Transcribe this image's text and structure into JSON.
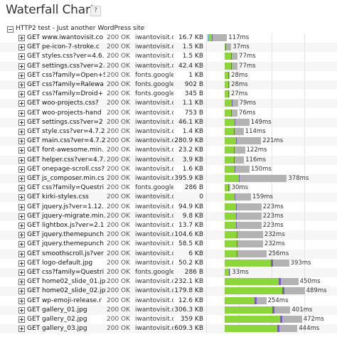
{
  "header": {
    "title": "Waterfall Chart",
    "help_label": "?"
  },
  "group": {
    "label": "HTTP2 test - Just another WordPress site"
  },
  "rows": [
    {
      "request": "GET www.iwantovisit.co",
      "status": "200 OK",
      "host": "iwantovisit.co",
      "size": "16.7 KB",
      "time": "117ms",
      "start_ms": 0,
      "green_ms": 20,
      "blue_ms": 4,
      "purple_ms": 2,
      "gray_ms": 90
    },
    {
      "request": "GET pe-icon-7-stroke.c",
      "status": "200 OK",
      "host": "iwantovisit.co",
      "size": "1.5 KB",
      "time": "37ms",
      "start_ms": 105,
      "green_ms": 5,
      "blue_ms": 0,
      "purple_ms": 2,
      "gray_ms": 30
    },
    {
      "request": "GET styles.css?ver=4.6.",
      "status": "200 OK",
      "host": "iwantovisit.co",
      "size": "1.5 KB",
      "time": "77ms",
      "start_ms": 105,
      "green_ms": 40,
      "blue_ms": 0,
      "purple_ms": 3,
      "gray_ms": 34
    },
    {
      "request": "GET settings.css?ver=2.",
      "status": "200 OK",
      "host": "iwantovisit.co",
      "size": "42.4 KB",
      "time": "77ms",
      "start_ms": 105,
      "green_ms": 40,
      "blue_ms": 0,
      "purple_ms": 3,
      "gray_ms": 34
    },
    {
      "request": "GET css?family=Open+S",
      "status": "200 OK",
      "host": "fonts.google.",
      "size": "1 KB",
      "time": "28ms",
      "start_ms": 105,
      "green_ms": 20,
      "blue_ms": 0,
      "purple_ms": 2,
      "gray_ms": 6
    },
    {
      "request": "GET css?family=Ralewa",
      "status": "200 OK",
      "host": "fonts.google.",
      "size": "902 B",
      "time": "28ms",
      "start_ms": 105,
      "green_ms": 20,
      "blue_ms": 0,
      "purple_ms": 2,
      "gray_ms": 6
    },
    {
      "request": "GET css?family=Droid+",
      "status": "200 OK",
      "host": "fonts.google.",
      "size": "345 B",
      "time": "27ms",
      "start_ms": 105,
      "green_ms": 20,
      "blue_ms": 0,
      "purple_ms": 2,
      "gray_ms": 5
    },
    {
      "request": "GET woo-projects.css?",
      "status": "200 OK",
      "host": "iwantovisit.co",
      "size": "1.1 KB",
      "time": "79ms",
      "start_ms": 105,
      "green_ms": 42,
      "blue_ms": 0,
      "purple_ms": 3,
      "gray_ms": 34
    },
    {
      "request": "GET woo-projects-hand",
      "status": "200 OK",
      "host": "iwantovisit.co",
      "size": "753 B",
      "time": "76ms",
      "start_ms": 105,
      "green_ms": 40,
      "blue_ms": 0,
      "purple_ms": 3,
      "gray_ms": 33
    },
    {
      "request": "GET settings.css?ver=2",
      "status": "200 OK",
      "host": "iwantovisit.co",
      "size": "46.1 KB",
      "time": "149ms",
      "start_ms": 105,
      "green_ms": 60,
      "blue_ms": 0,
      "purple_ms": 3,
      "gray_ms": 86
    },
    {
      "request": "GET style.css?ver=4.7.2",
      "status": "200 OK",
      "host": "iwantovisit.co",
      "size": "1.4 KB",
      "time": "114ms",
      "start_ms": 105,
      "green_ms": 55,
      "blue_ms": 0,
      "purple_ms": 3,
      "gray_ms": 56
    },
    {
      "request": "GET main.css?ver=4.7.2",
      "status": "200 OK",
      "host": "iwantovisit.co",
      "size": "280.9 KB",
      "time": "221ms",
      "start_ms": 105,
      "green_ms": 70,
      "blue_ms": 0,
      "purple_ms": 3,
      "gray_ms": 148
    },
    {
      "request": "GET font-awesome.min.",
      "status": "200 OK",
      "host": "iwantovisit.co",
      "size": "23.2 KB",
      "time": "122ms",
      "start_ms": 105,
      "green_ms": 55,
      "blue_ms": 0,
      "purple_ms": 3,
      "gray_ms": 64
    },
    {
      "request": "GET helper.css?ver=4.7.",
      "status": "200 OK",
      "host": "iwantovisit.co",
      "size": "3.9 KB",
      "time": "116ms",
      "start_ms": 105,
      "green_ms": 55,
      "blue_ms": 0,
      "purple_ms": 3,
      "gray_ms": 58
    },
    {
      "request": "GET onepage-scroll.css?",
      "status": "200 OK",
      "host": "iwantovisit.co",
      "size": "1.6 KB",
      "time": "150ms",
      "start_ms": 105,
      "green_ms": 60,
      "blue_ms": 0,
      "purple_ms": 3,
      "gray_ms": 87
    },
    {
      "request": "GET js_composer.min.cs",
      "status": "200 OK",
      "host": "iwantovisit.co",
      "size": "395.9 KB",
      "time": "378ms",
      "start_ms": 105,
      "green_ms": 85,
      "blue_ms": 0,
      "purple_ms": 3,
      "gray_ms": 290
    },
    {
      "request": "GET css?family=Questri",
      "status": "200 OK",
      "host": "fonts.google.",
      "size": "286 B",
      "time": "30ms",
      "start_ms": 105,
      "green_ms": 22,
      "blue_ms": 0,
      "purple_ms": 2,
      "gray_ms": 6
    },
    {
      "request": "GET kirki-styles.css",
      "status": "200 OK",
      "host": "iwantovisit.co",
      "size": "0",
      "time": "159ms",
      "start_ms": 105,
      "green_ms": 62,
      "blue_ms": 0,
      "purple_ms": 3,
      "gray_ms": 94
    },
    {
      "request": "GET jquery.js?ver=1.12.",
      "status": "200 OK",
      "host": "iwantovisit.co",
      "size": "94.9 KB",
      "time": "223ms",
      "start_ms": 105,
      "green_ms": 70,
      "blue_ms": 0,
      "purple_ms": 3,
      "gray_ms": 150
    },
    {
      "request": "GET jquery-migrate.min.",
      "status": "200 OK",
      "host": "iwantovisit.co",
      "size": "9.8 KB",
      "time": "223ms",
      "start_ms": 105,
      "green_ms": 70,
      "blue_ms": 0,
      "purple_ms": 3,
      "gray_ms": 150
    },
    {
      "request": "GET lightbox.js?ver=2.1",
      "status": "200 OK",
      "host": "iwantovisit.co",
      "size": "13.7 KB",
      "time": "223ms",
      "start_ms": 105,
      "green_ms": 70,
      "blue_ms": 0,
      "purple_ms": 3,
      "gray_ms": 150
    },
    {
      "request": "GET jquery.themepunch",
      "status": "200 OK",
      "host": "iwantovisit.co",
      "size": "104.6 KB",
      "time": "232ms",
      "start_ms": 105,
      "green_ms": 72,
      "blue_ms": 0,
      "purple_ms": 3,
      "gray_ms": 157
    },
    {
      "request": "GET jquery.themepunch",
      "status": "200 OK",
      "host": "iwantovisit.co",
      "size": "58.5 KB",
      "time": "232ms",
      "start_ms": 105,
      "green_ms": 72,
      "blue_ms": 0,
      "purple_ms": 3,
      "gray_ms": 157
    },
    {
      "request": "GET smoothscroll.js?ver",
      "status": "200 OK",
      "host": "iwantovisit.co",
      "size": "6 KB",
      "time": "256ms",
      "start_ms": 105,
      "green_ms": 75,
      "blue_ms": 0,
      "purple_ms": 3,
      "gray_ms": 178
    },
    {
      "request": "GET logo-default.jpg",
      "status": "200 OK",
      "host": "iwantovisit.co",
      "size": "50.2 KB",
      "time": "393ms",
      "start_ms": 105,
      "green_ms": 280,
      "blue_ms": 0,
      "purple_ms": 13,
      "gray_ms": 100
    },
    {
      "request": "GET css?family=Questri",
      "status": "200 OK",
      "host": "fonts.google.",
      "size": "286 B",
      "time": "33ms",
      "start_ms": 105,
      "green_ms": 24,
      "blue_ms": 0,
      "purple_ms": 2,
      "gray_ms": 7
    },
    {
      "request": "GET home02_slide_01.jpg",
      "status": "200 OK",
      "host": "iwantovisit.co",
      "size": "232.1 KB",
      "time": "450ms",
      "start_ms": 105,
      "green_ms": 330,
      "blue_ms": 0,
      "purple_ms": 13,
      "gray_ms": 107
    },
    {
      "request": "GET home02_slide_02.jpg",
      "status": "200 OK",
      "host": "iwantovisit.co",
      "size": "179.8 KB",
      "time": "489ms",
      "start_ms": 105,
      "green_ms": 350,
      "blue_ms": 0,
      "purple_ms": 13,
      "gray_ms": 126
    },
    {
      "request": "GET wp-emoji-release.r",
      "status": "200 OK",
      "host": "iwantovisit.co",
      "size": "12.6 KB",
      "time": "254ms",
      "start_ms": 105,
      "green_ms": 180,
      "blue_ms": 0,
      "purple_ms": 13,
      "gray_ms": 61
    },
    {
      "request": "GET gallery_01.jpg",
      "status": "200 OK",
      "host": "iwantovisit.co",
      "size": "306.3 KB",
      "time": "401ms",
      "start_ms": 105,
      "green_ms": 290,
      "blue_ms": 0,
      "purple_ms": 13,
      "gray_ms": 98
    },
    {
      "request": "GET gallery_02.jpg",
      "status": "200 OK",
      "host": "iwantovisit.co",
      "size": "359 KB",
      "time": "472ms",
      "start_ms": 105,
      "green_ms": 340,
      "blue_ms": 0,
      "purple_ms": 13,
      "gray_ms": 119
    },
    {
      "request": "GET gallery_03.jpg",
      "status": "200 OK",
      "host": "iwantovisit.co",
      "size": "609.3 KB",
      "time": "444ms",
      "start_ms": 105,
      "green_ms": 320,
      "blue_ms": 0,
      "purple_ms": 13,
      "gray_ms": 111
    }
  ],
  "colors": {
    "waiting": "#b3b3b3",
    "receiving": "#8cd63c",
    "connect": "#6aa7e8",
    "ttfb": "#7b5cc7",
    "alt_row": "#f6f6f6"
  }
}
